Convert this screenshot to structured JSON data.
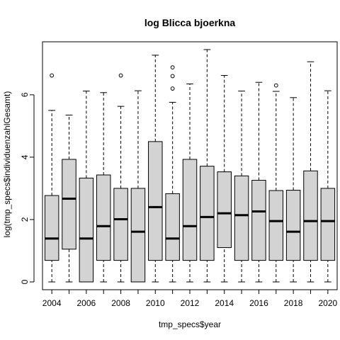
{
  "chart_data": {
    "type": "boxplot",
    "title": "log Blicca bjoerkna",
    "xlabel": "tmp_specs$year",
    "ylabel": "log(tmp_specs$individuenzahlGesamt)",
    "categories": [
      2004,
      2005,
      2006,
      2007,
      2008,
      2009,
      2010,
      2011,
      2012,
      2013,
      2014,
      2015,
      2016,
      2017,
      2018,
      2019,
      2020
    ],
    "x_tick_labels": [
      "2004",
      "2006",
      "2008",
      "2010",
      "2012",
      "2014",
      "2016",
      "2018",
      "2020"
    ],
    "y_ticks": [
      0,
      2,
      4,
      6
    ],
    "ylim": [
      -0.25,
      7.7
    ],
    "grid": false,
    "legend": "none",
    "colors": {
      "box_fill": "#d3d3d3",
      "stroke": "#000000"
    },
    "boxes": [
      {
        "year": 2004,
        "whisker_low": 0,
        "q1": 0.69,
        "median": 1.39,
        "q3": 2.77,
        "whisker_high": 5.5,
        "outliers": [
          6.62
        ]
      },
      {
        "year": 2005,
        "whisker_low": 0,
        "q1": 1.05,
        "median": 2.67,
        "q3": 3.93,
        "whisker_high": 5.35,
        "outliers": []
      },
      {
        "year": 2006,
        "whisker_low": 0,
        "q1": 0,
        "median": 1.39,
        "q3": 3.33,
        "whisker_high": 6.12,
        "outliers": []
      },
      {
        "year": 2007,
        "whisker_low": 0,
        "q1": 0.69,
        "median": 1.79,
        "q3": 3.43,
        "whisker_high": 6.07,
        "outliers": []
      },
      {
        "year": 2008,
        "whisker_low": 0,
        "q1": 0.69,
        "median": 2.01,
        "q3": 3.0,
        "whisker_high": 5.63,
        "outliers": [
          6.62
        ]
      },
      {
        "year": 2009,
        "whisker_low": 0,
        "q1": 0,
        "median": 1.61,
        "q3": 3.0,
        "whisker_high": 6.13,
        "outliers": []
      },
      {
        "year": 2010,
        "whisker_low": 0,
        "q1": 0.69,
        "median": 2.4,
        "q3": 4.5,
        "whisker_high": 7.27,
        "outliers": []
      },
      {
        "year": 2011,
        "whisker_low": 0,
        "q1": 0.69,
        "median": 1.39,
        "q3": 2.83,
        "whisker_high": 5.76,
        "outliers": [
          6.2,
          6.6,
          6.88
        ]
      },
      {
        "year": 2012,
        "whisker_low": 0,
        "q1": 0.69,
        "median": 1.79,
        "q3": 3.93,
        "whisker_high": 6.35,
        "outliers": []
      },
      {
        "year": 2013,
        "whisker_low": 0,
        "q1": 0.69,
        "median": 2.08,
        "q3": 3.71,
        "whisker_high": 7.45,
        "outliers": []
      },
      {
        "year": 2014,
        "whisker_low": 0,
        "q1": 1.1,
        "median": 2.2,
        "q3": 3.53,
        "whisker_high": 6.62,
        "outliers": []
      },
      {
        "year": 2015,
        "whisker_low": 0,
        "q1": 0.69,
        "median": 2.14,
        "q3": 3.4,
        "whisker_high": 6.12,
        "outliers": []
      },
      {
        "year": 2016,
        "whisker_low": 0,
        "q1": 0.69,
        "median": 2.26,
        "q3": 3.26,
        "whisker_high": 6.4,
        "outliers": []
      },
      {
        "year": 2017,
        "whisker_low": 0,
        "q1": 0.69,
        "median": 1.95,
        "q3": 2.93,
        "whisker_high": 6.11,
        "outliers": [
          6.3
        ]
      },
      {
        "year": 2018,
        "whisker_low": 0,
        "q1": 0.69,
        "median": 1.61,
        "q3": 2.94,
        "whisker_high": 5.91,
        "outliers": []
      },
      {
        "year": 2019,
        "whisker_low": 0,
        "q1": 0.69,
        "median": 1.95,
        "q3": 3.56,
        "whisker_high": 7.06,
        "outliers": []
      },
      {
        "year": 2020,
        "whisker_low": 0,
        "q1": 0.69,
        "median": 1.95,
        "q3": 3.0,
        "whisker_high": 6.13,
        "outliers": []
      }
    ]
  }
}
